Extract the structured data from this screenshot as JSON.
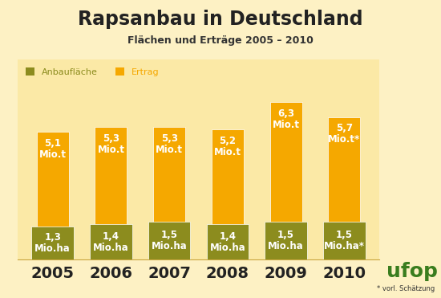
{
  "chart_data": {
    "type": "bar",
    "title": "Rapsanbau in Deutschland",
    "subtitle": "Flächen und Erträge 2005 – 2010",
    "categories": [
      "2005",
      "2006",
      "2007",
      "2008",
      "2009",
      "2010"
    ],
    "series": [
      {
        "name": "Ertrag",
        "color": "#f5a800",
        "values": [
          5.1,
          5.3,
          5.3,
          5.2,
          6.3,
          5.7
        ],
        "value_labels": [
          "5,1\nMio.t",
          "5,3\nMio.t",
          "5,3\nMio.t",
          "5,2\nMio.t",
          "6,3\nMio.t",
          "5,7\nMio.t*"
        ]
      },
      {
        "name": "Anbaufläche",
        "color": "#8c8c1e",
        "values": [
          1.3,
          1.4,
          1.5,
          1.4,
          1.5,
          1.5
        ],
        "value_labels": [
          "1,3\nMio.ha",
          "1,4\nMio.ha",
          "1,5\nMio.ha",
          "1,4\nMio.ha",
          "1,5\nMio.ha",
          "1,5\nMio.ha*"
        ]
      }
    ],
    "legend_order": [
      "Anbaufläche",
      "Ertrag"
    ],
    "ylim": [
      0,
      8
    ],
    "data_labels": true,
    "tick_labels": "x",
    "legend": "upper left",
    "footnote": "* vorl. Schätzung",
    "logo": "ufop"
  }
}
